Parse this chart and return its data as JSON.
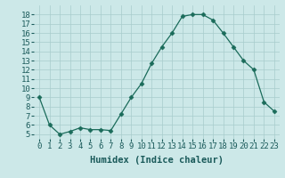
{
  "x": [
    0,
    1,
    2,
    3,
    4,
    5,
    6,
    7,
    8,
    9,
    10,
    11,
    12,
    13,
    14,
    15,
    16,
    17,
    18,
    19,
    20,
    21,
    22,
    23
  ],
  "y": [
    9,
    6,
    5,
    5.3,
    5.7,
    5.5,
    5.5,
    5.4,
    7.2,
    9,
    10.5,
    12.7,
    14.5,
    16,
    17.8,
    18,
    18,
    17.4,
    16,
    14.5,
    13,
    12,
    8.5,
    7.5
  ],
  "xlabel": "Humidex (Indice chaleur)",
  "ylim": [
    4.5,
    19
  ],
  "xlim": [
    -0.5,
    23.5
  ],
  "line_color": "#1a6b5a",
  "marker": "D",
  "marker_size": 2.5,
  "bg_color": "#cce8e8",
  "grid_color": "#a8cccc",
  "yticks": [
    5,
    6,
    7,
    8,
    9,
    10,
    11,
    12,
    13,
    14,
    15,
    16,
    17,
    18
  ],
  "xticks": [
    0,
    1,
    2,
    3,
    4,
    5,
    6,
    7,
    8,
    9,
    10,
    11,
    12,
    13,
    14,
    15,
    16,
    17,
    18,
    19,
    20,
    21,
    22,
    23
  ],
  "xtick_labels": [
    "0",
    "1",
    "2",
    "3",
    "4",
    "5",
    "6",
    "7",
    "8",
    "9",
    "10",
    "11",
    "12",
    "13",
    "14",
    "15",
    "16",
    "17",
    "18",
    "19",
    "20",
    "21",
    "22",
    "23"
  ],
  "xlabel_fontsize": 7.5,
  "tick_fontsize": 6.5
}
